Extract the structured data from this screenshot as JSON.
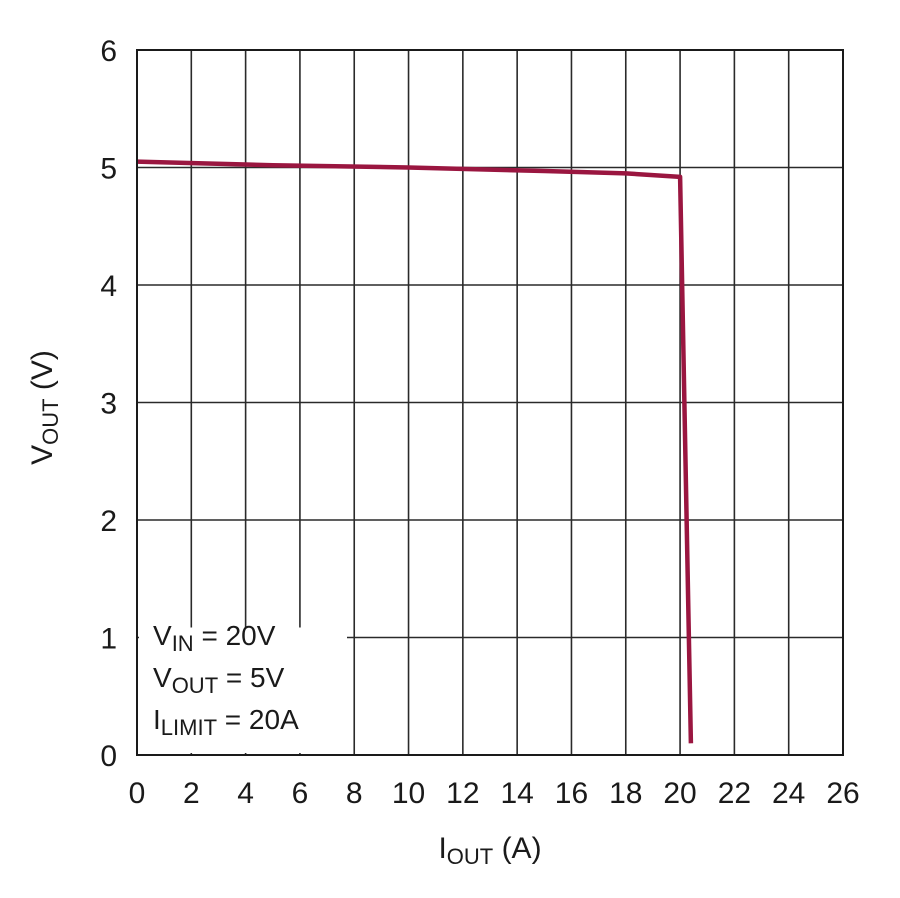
{
  "chart_data": {
    "type": "line",
    "title": "",
    "xlabel": {
      "main": "I",
      "sub": "OUT",
      "unit": " (A)"
    },
    "ylabel": {
      "main": "V",
      "sub": "OUT",
      "unit": " (V)"
    },
    "xlim": [
      0,
      26
    ],
    "ylim": [
      0,
      6
    ],
    "xticks": [
      "0",
      "2",
      "4",
      "6",
      "8",
      "10",
      "12",
      "14",
      "16",
      "18",
      "20",
      "22",
      "24",
      "26"
    ],
    "yticks": [
      "0",
      "1",
      "2",
      "3",
      "4",
      "5",
      "6"
    ],
    "grid": true,
    "legend": "none",
    "series": [
      {
        "color": "#9a1640",
        "x": [
          0,
          5,
          10,
          15,
          18,
          20.0,
          20.2,
          20.4
        ],
        "y": [
          5.05,
          5.02,
          5.0,
          4.97,
          4.95,
          4.92,
          2.5,
          0.1
        ]
      }
    ],
    "annotation": [
      {
        "main": "V",
        "sub": "IN",
        "rest": " = 20V"
      },
      {
        "main": "V",
        "sub": "OUT",
        "rest": " = 5V"
      },
      {
        "main": "I",
        "sub": "LIMIT",
        "rest": " = 20A"
      }
    ]
  }
}
